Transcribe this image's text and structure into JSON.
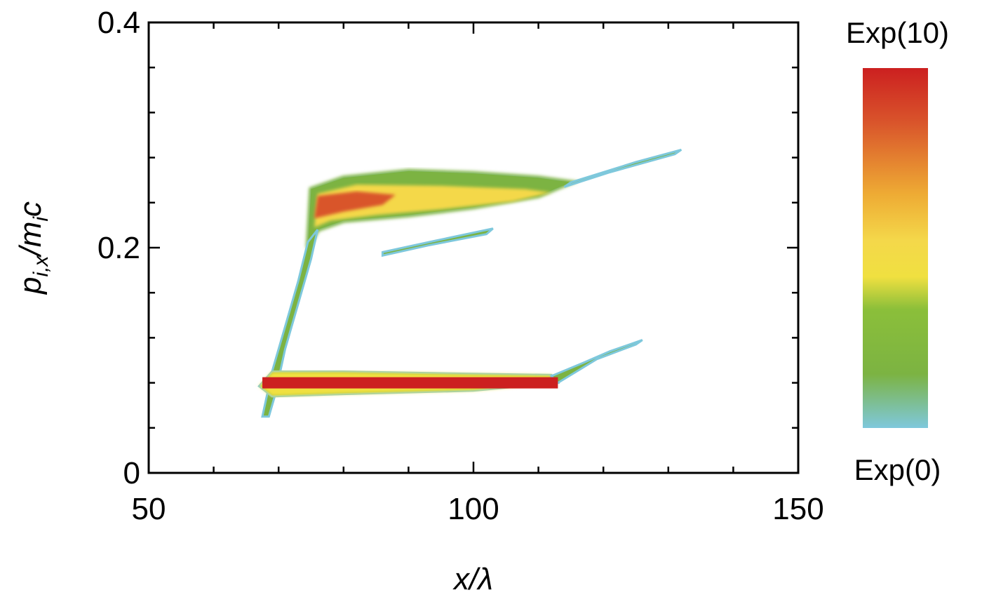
{
  "chart_data": {
    "type": "heatmap",
    "title": "",
    "xlabel": "x/λ",
    "ylabel": {
      "p": "p",
      "sub1": "i,x",
      "slash": "/m",
      "sub2": "i",
      "c": "c"
    },
    "xlim": [
      50,
      150
    ],
    "ylim": [
      0,
      0.4
    ],
    "xticks": [
      {
        "value": 50,
        "label": "50"
      },
      {
        "value": 100,
        "label": "100"
      },
      {
        "value": 150,
        "label": "150"
      }
    ],
    "yticks": [
      {
        "value": 0,
        "label": "0"
      },
      {
        "value": 0.2,
        "label": "0.2"
      },
      {
        "value": 0.4,
        "label": "0.4"
      }
    ],
    "x_minor_step": 10,
    "y_minor_step": 0.04,
    "grid": false,
    "colorbar": {
      "position": "right",
      "max_label": "Exp(10)",
      "min_label": "Exp(0)",
      "stops": [
        {
          "level": 0.0,
          "color": "#7ec8dc"
        },
        {
          "level": 0.15,
          "color": "#7cb342"
        },
        {
          "level": 0.33,
          "color": "#8bbf3a"
        },
        {
          "level": 0.42,
          "color": "#f0e040"
        },
        {
          "level": 0.52,
          "color": "#f4d84a"
        },
        {
          "level": 0.65,
          "color": "#eeab34"
        },
        {
          "level": 0.85,
          "color": "#d9542b"
        },
        {
          "level": 1.0,
          "color": "#cc2020"
        }
      ]
    },
    "features": [
      {
        "name": "upper-band",
        "edge_polygon": [
          [
            74.5,
            0.2
          ],
          [
            75,
            0.252
          ],
          [
            80,
            0.262
          ],
          [
            90,
            0.268
          ],
          [
            100,
            0.266
          ],
          [
            110,
            0.262
          ],
          [
            115,
            0.258
          ],
          [
            110,
            0.246
          ],
          [
            100,
            0.236
          ],
          [
            90,
            0.229
          ],
          [
            80,
            0.224
          ],
          [
            76,
            0.216
          ]
        ],
        "core_polygon": [
          [
            75.5,
            0.218
          ],
          [
            76,
            0.248
          ],
          [
            82,
            0.256
          ],
          [
            95,
            0.255
          ],
          [
            108,
            0.252
          ],
          [
            112,
            0.249
          ],
          [
            106,
            0.241
          ],
          [
            95,
            0.234
          ],
          [
            85,
            0.229
          ],
          [
            78,
            0.224
          ]
        ],
        "hot_polygon": [
          [
            75.5,
            0.226
          ],
          [
            76,
            0.246
          ],
          [
            82,
            0.25
          ],
          [
            88,
            0.247
          ],
          [
            86,
            0.238
          ],
          [
            80,
            0.232
          ]
        ]
      },
      {
        "name": "upper-tail",
        "polygon": [
          [
            115,
            0.258
          ],
          [
            125,
            0.276
          ],
          [
            132,
            0.287
          ],
          [
            131,
            0.283
          ],
          [
            121,
            0.267
          ],
          [
            114,
            0.254
          ]
        ]
      },
      {
        "name": "upper-lower-streak",
        "polygon": [
          [
            86,
            0.196
          ],
          [
            94,
            0.206
          ],
          [
            103,
            0.217
          ],
          [
            102,
            0.212
          ],
          [
            93,
            0.202
          ],
          [
            86,
            0.193
          ]
        ]
      },
      {
        "name": "rising-filament",
        "polygon": [
          [
            67.5,
            0.05
          ],
          [
            69,
            0.09
          ],
          [
            71,
            0.13
          ],
          [
            73,
            0.17
          ],
          [
            74.5,
            0.205
          ],
          [
            76,
            0.216
          ],
          [
            75,
            0.19
          ],
          [
            73,
            0.15
          ],
          [
            71,
            0.11
          ],
          [
            69.5,
            0.07
          ],
          [
            68.5,
            0.05
          ]
        ]
      },
      {
        "name": "lower-band",
        "polygon": [
          [
            67,
            0.077
          ],
          [
            69,
            0.09
          ],
          [
            80,
            0.09
          ],
          [
            100,
            0.088
          ],
          [
            112,
            0.087
          ],
          [
            113,
            0.08
          ],
          [
            100,
            0.073
          ],
          [
            80,
            0.07
          ],
          [
            69,
            0.068
          ]
        ]
      },
      {
        "name": "lower-tail",
        "polygon": [
          [
            112,
            0.086
          ],
          [
            117,
            0.098
          ],
          [
            121,
            0.108
          ],
          [
            126,
            0.118
          ],
          [
            125,
            0.114
          ],
          [
            119,
            0.101
          ],
          [
            113,
            0.08
          ]
        ]
      },
      {
        "name": "lower-bar",
        "x_start": 67.5,
        "x_end": 113,
        "y_center": 0.08,
        "thickness": 0.01
      }
    ]
  }
}
